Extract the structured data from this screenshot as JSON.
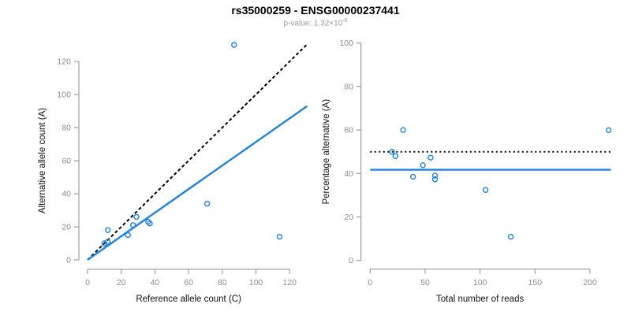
{
  "header": {
    "title": "rs35000259 - ENSG00000237441",
    "subtitle_prefix": "p-value: 1.32×10",
    "subtitle_exponent": "-6"
  },
  "colors": {
    "accent_blue": "#1f82e0",
    "reference_black": "#000000",
    "axis_gray": "#8c8c8c",
    "tick_label_gray": "#8c8c8c",
    "axis_title_color": "#111111",
    "subtitle_gray": "#9a9a9a"
  },
  "chart_data": [
    {
      "type": "scatter",
      "title": "",
      "xlabel": "Reference allele count (C)",
      "ylabel": "Alternative allele count (A)",
      "xlim": [
        0,
        130
      ],
      "ylim": [
        0,
        131
      ],
      "grid": false,
      "x_ticks": [
        0,
        20,
        40,
        60,
        80,
        100,
        120
      ],
      "y_ticks": [
        0,
        20,
        40,
        60,
        80,
        100,
        120
      ],
      "marker": "open-circle",
      "points": [
        [
          10,
          10
        ],
        [
          12,
          11
        ],
        [
          12,
          18
        ],
        [
          24,
          15
        ],
        [
          27,
          21
        ],
        [
          29,
          26
        ],
        [
          36,
          23
        ],
        [
          37,
          22
        ],
        [
          71,
          34
        ],
        [
          87,
          130
        ],
        [
          114,
          14
        ]
      ],
      "lines": [
        {
          "name": "identity-y-equals-x",
          "style": "dashed",
          "color": "#000000",
          "x1": 0,
          "y1": 0,
          "x2": 130.5,
          "y2": 130.5
        },
        {
          "name": "fit",
          "style": "solid",
          "color": "#1f82e0",
          "x1": 0,
          "y1": 0,
          "x2": 130.4,
          "y2": 93
        }
      ]
    },
    {
      "type": "scatter",
      "title": "",
      "xlabel": "Total number of reads",
      "ylabel": "Percentage alternative (A)",
      "xlim": [
        0,
        219
      ],
      "ylim": [
        0,
        100
      ],
      "grid": false,
      "x_ticks": [
        0,
        50,
        100,
        150,
        200
      ],
      "y_ticks": [
        0,
        20,
        40,
        60,
        80,
        100
      ],
      "marker": "open-circle",
      "points": [
        [
          20,
          50
        ],
        [
          23,
          48
        ],
        [
          30,
          60
        ],
        [
          39,
          38.5
        ],
        [
          48,
          43.8
        ],
        [
          55,
          47.3
        ],
        [
          59,
          39
        ],
        [
          59,
          37.3
        ],
        [
          105,
          32.4
        ],
        [
          128,
          10.9
        ],
        [
          217,
          59.9
        ]
      ],
      "lines": [
        {
          "name": "expected-50-percent",
          "style": "dotted",
          "color": "#000000",
          "x1": 0,
          "y1": 50,
          "x2": 219,
          "y2": 50
        },
        {
          "name": "observed-mean-percent",
          "style": "solid",
          "color": "#1f82e0",
          "x1": 0,
          "y1": 41.7,
          "x2": 219,
          "y2": 41.7
        }
      ]
    }
  ]
}
